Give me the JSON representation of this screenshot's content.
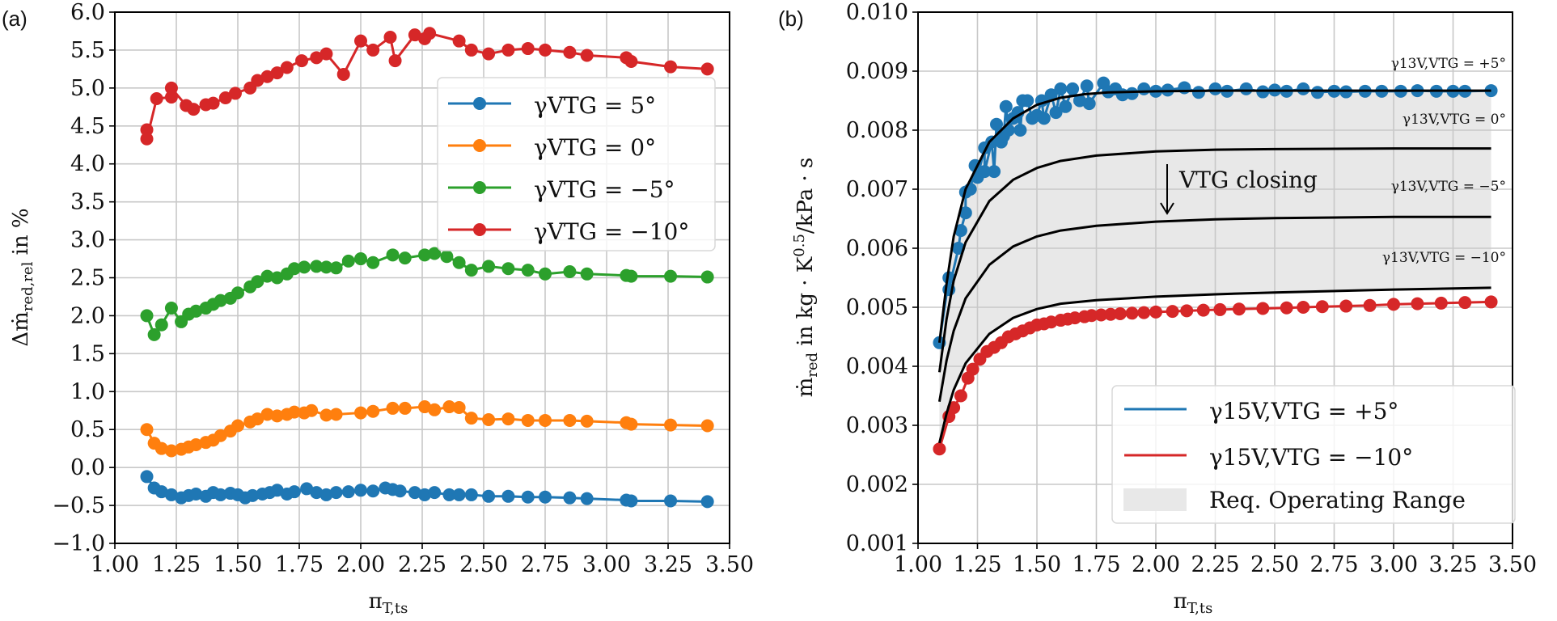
{
  "chart_data": [
    {
      "panel_label": "(a)",
      "type": "line",
      "xlabel": "π_T,ts",
      "ylabel": "Δṁ_red,rel in %",
      "xlim": [
        1.0,
        3.5
      ],
      "ylim": [
        -1.0,
        6.0
      ],
      "xticks": [
        "1.00",
        "1.25",
        "1.50",
        "1.75",
        "2.00",
        "2.25",
        "2.50",
        "2.75",
        "3.00",
        "3.25",
        "3.50"
      ],
      "yticks": [
        "−1.0",
        "−0.5",
        "0.0",
        "0.5",
        "1.0",
        "1.5",
        "2.0",
        "2.5",
        "3.0",
        "3.5",
        "4.0",
        "4.5",
        "5.0",
        "5.5",
        "6.0"
      ],
      "grid": true,
      "legend_position": "upper-right",
      "series": [
        {
          "name": "γVTG = 5°",
          "color": "#1f77b4",
          "x": [
            1.13,
            1.16,
            1.19,
            1.23,
            1.27,
            1.3,
            1.33,
            1.37,
            1.4,
            1.43,
            1.47,
            1.5,
            1.53,
            1.56,
            1.6,
            1.63,
            1.66,
            1.7,
            1.73,
            1.78,
            1.82,
            1.86,
            1.9,
            1.95,
            2.0,
            2.05,
            2.1,
            2.13,
            2.16,
            2.22,
            2.26,
            2.3,
            2.36,
            2.4,
            2.45,
            2.52,
            2.6,
            2.68,
            2.75,
            2.85,
            2.92,
            3.08,
            3.1,
            3.26,
            3.41
          ],
          "y": [
            -0.12,
            -0.27,
            -0.32,
            -0.36,
            -0.4,
            -0.37,
            -0.35,
            -0.38,
            -0.33,
            -0.36,
            -0.34,
            -0.36,
            -0.4,
            -0.37,
            -0.35,
            -0.33,
            -0.3,
            -0.35,
            -0.32,
            -0.28,
            -0.33,
            -0.36,
            -0.33,
            -0.32,
            -0.3,
            -0.31,
            -0.27,
            -0.29,
            -0.31,
            -0.33,
            -0.36,
            -0.33,
            -0.36,
            -0.36,
            -0.36,
            -0.38,
            -0.38,
            -0.39,
            -0.39,
            -0.4,
            -0.41,
            -0.43,
            -0.44,
            -0.44,
            -0.45
          ]
        },
        {
          "name": "γVTG = 0°",
          "color": "#ff7f0e",
          "x": [
            1.13,
            1.16,
            1.19,
            1.23,
            1.27,
            1.3,
            1.33,
            1.37,
            1.4,
            1.43,
            1.47,
            1.5,
            1.55,
            1.58,
            1.62,
            1.66,
            1.7,
            1.73,
            1.77,
            1.8,
            1.86,
            1.9,
            2.0,
            2.05,
            2.13,
            2.18,
            2.26,
            2.3,
            2.36,
            2.4,
            2.45,
            2.52,
            2.6,
            2.68,
            2.75,
            2.85,
            2.92,
            3.08,
            3.1,
            3.26,
            3.41
          ],
          "y": [
            0.5,
            0.32,
            0.25,
            0.22,
            0.24,
            0.27,
            0.3,
            0.33,
            0.36,
            0.42,
            0.48,
            0.55,
            0.6,
            0.64,
            0.7,
            0.68,
            0.7,
            0.73,
            0.72,
            0.75,
            0.69,
            0.7,
            0.72,
            0.74,
            0.78,
            0.78,
            0.8,
            0.76,
            0.8,
            0.79,
            0.65,
            0.63,
            0.64,
            0.62,
            0.62,
            0.62,
            0.61,
            0.59,
            0.57,
            0.56,
            0.55
          ]
        },
        {
          "name": "γVTG = −5°",
          "color": "#2ca02c",
          "x": [
            1.13,
            1.16,
            1.19,
            1.23,
            1.27,
            1.3,
            1.33,
            1.37,
            1.4,
            1.43,
            1.47,
            1.5,
            1.55,
            1.58,
            1.62,
            1.66,
            1.7,
            1.73,
            1.77,
            1.82,
            1.86,
            1.9,
            1.95,
            2.0,
            2.05,
            2.13,
            2.18,
            2.26,
            2.3,
            2.35,
            2.4,
            2.45,
            2.52,
            2.6,
            2.68,
            2.75,
            2.85,
            2.92,
            3.08,
            3.1,
            3.26,
            3.41
          ],
          "y": [
            2.0,
            1.75,
            1.88,
            2.1,
            1.92,
            2.02,
            2.06,
            2.1,
            2.15,
            2.2,
            2.23,
            2.3,
            2.38,
            2.45,
            2.52,
            2.5,
            2.55,
            2.62,
            2.64,
            2.65,
            2.64,
            2.63,
            2.72,
            2.75,
            2.7,
            2.8,
            2.76,
            2.8,
            2.82,
            2.78,
            2.7,
            2.6,
            2.65,
            2.62,
            2.6,
            2.55,
            2.58,
            2.55,
            2.53,
            2.52,
            2.52,
            2.51
          ]
        },
        {
          "name": "γVTG = −10°",
          "color": "#d62728",
          "x": [
            1.13,
            1.13,
            1.17,
            1.23,
            1.23,
            1.29,
            1.32,
            1.37,
            1.4,
            1.45,
            1.49,
            1.55,
            1.58,
            1.62,
            1.66,
            1.7,
            1.76,
            1.82,
            1.86,
            1.93,
            2.0,
            2.05,
            2.12,
            2.14,
            2.22,
            2.26,
            2.28,
            2.4,
            2.45,
            2.52,
            2.6,
            2.68,
            2.75,
            2.85,
            2.92,
            3.08,
            3.1,
            3.26,
            3.41
          ],
          "y": [
            4.45,
            4.33,
            4.86,
            4.88,
            5.0,
            4.77,
            4.72,
            4.78,
            4.8,
            4.87,
            4.93,
            5.0,
            5.1,
            5.15,
            5.2,
            5.27,
            5.36,
            5.4,
            5.45,
            5.18,
            5.62,
            5.5,
            5.67,
            5.36,
            5.7,
            5.65,
            5.72,
            5.62,
            5.5,
            5.45,
            5.5,
            5.52,
            5.5,
            5.47,
            5.43,
            5.4,
            5.35,
            5.28,
            5.25
          ]
        }
      ]
    },
    {
      "panel_label": "(b)",
      "type": "line",
      "xlabel": "π_T,ts",
      "ylabel": "ṁ_red in kg · K^0.5 /kPa · s",
      "xlim": [
        1.0,
        3.5
      ],
      "ylim": [
        0.001,
        0.01
      ],
      "xticks": [
        "1.00",
        "1.25",
        "1.50",
        "1.75",
        "2.00",
        "2.25",
        "2.50",
        "2.75",
        "3.00",
        "3.25",
        "3.50"
      ],
      "yticks": [
        "0.001",
        "0.002",
        "0.003",
        "0.004",
        "0.005",
        "0.006",
        "0.007",
        "0.008",
        "0.009",
        "0.010"
      ],
      "grid": true,
      "legend_position": "lower-right",
      "fill_band": {
        "name": "Req. Operating Range",
        "color": "#e8e8e8",
        "from_curve": "γ13V,VTG = −10°",
        "to_curve": "γ13V,VTG = +5°"
      },
      "model_curves": [
        {
          "name": "γ13V,VTG = +5°",
          "x": [
            1.09,
            1.12,
            1.15,
            1.2,
            1.3,
            1.4,
            1.5,
            1.6,
            1.7,
            1.8,
            2.0,
            2.25,
            2.5,
            3.0,
            3.41
          ],
          "y": [
            0.0044,
            0.0054,
            0.0062,
            0.007,
            0.0078,
            0.0082,
            0.00843,
            0.00855,
            0.00861,
            0.00864,
            0.00866,
            0.00867,
            0.00867,
            0.00867,
            0.00867
          ]
        },
        {
          "name": "γ13V,VTG = 0°",
          "x": [
            1.09,
            1.12,
            1.15,
            1.2,
            1.3,
            1.4,
            1.5,
            1.6,
            1.75,
            2.0,
            2.25,
            2.5,
            3.0,
            3.41
          ],
          "y": [
            0.0039,
            0.0048,
            0.00545,
            0.0061,
            0.0068,
            0.00716,
            0.00736,
            0.00748,
            0.00757,
            0.00764,
            0.00767,
            0.00768,
            0.00769,
            0.00769
          ]
        },
        {
          "name": "γ13V,VTG = −5°",
          "x": [
            1.09,
            1.12,
            1.15,
            1.2,
            1.3,
            1.4,
            1.5,
            1.6,
            1.75,
            2.0,
            2.25,
            2.5,
            3.0,
            3.41
          ],
          "y": [
            0.0034,
            0.0041,
            0.0046,
            0.00515,
            0.00572,
            0.00603,
            0.0062,
            0.0063,
            0.00638,
            0.00645,
            0.00649,
            0.00651,
            0.00653,
            0.00653
          ]
        },
        {
          "name": "γ13V,VTG = −10°",
          "x": [
            1.09,
            1.12,
            1.15,
            1.2,
            1.3,
            1.4,
            1.5,
            1.6,
            1.75,
            2.0,
            2.25,
            2.5,
            3.0,
            3.41
          ],
          "y": [
            0.0027,
            0.0032,
            0.0036,
            0.00405,
            0.00455,
            0.00482,
            0.00497,
            0.00506,
            0.00512,
            0.00518,
            0.00522,
            0.00525,
            0.0053,
            0.00533
          ]
        }
      ],
      "series": [
        {
          "name": "γ15V,VTG = +5°",
          "color": "#1f77b4",
          "x": [
            1.09,
            1.13,
            1.13,
            1.17,
            1.18,
            1.2,
            1.2,
            1.22,
            1.24,
            1.25,
            1.28,
            1.28,
            1.31,
            1.32,
            1.33,
            1.35,
            1.36,
            1.37,
            1.38,
            1.4,
            1.42,
            1.43,
            1.44,
            1.46,
            1.48,
            1.5,
            1.52,
            1.53,
            1.56,
            1.58,
            1.6,
            1.62,
            1.65,
            1.68,
            1.71,
            1.72,
            1.78,
            1.8,
            1.83,
            1.86,
            1.9,
            1.95,
            2.0,
            2.05,
            2.12,
            2.18,
            2.25,
            2.3,
            2.38,
            2.45,
            2.5,
            2.55,
            2.62,
            2.68,
            2.75,
            2.8,
            2.88,
            2.95,
            3.03,
            3.1,
            3.18,
            3.25,
            3.3,
            3.41
          ],
          "y": [
            0.0044,
            0.0055,
            0.0053,
            0.006,
            0.0063,
            0.0066,
            0.00695,
            0.007,
            0.0074,
            0.0072,
            0.0077,
            0.0073,
            0.0078,
            0.0073,
            0.0081,
            0.0078,
            0.0079,
            0.0084,
            0.008,
            0.0082,
            0.0083,
            0.008,
            0.0085,
            0.0085,
            0.0082,
            0.00825,
            0.0085,
            0.0082,
            0.0086,
            0.0083,
            0.0087,
            0.0084,
            0.0087,
            0.0085,
            0.00875,
            0.00845,
            0.0088,
            0.00865,
            0.0087,
            0.0086,
            0.00862,
            0.0087,
            0.00866,
            0.00868,
            0.00872,
            0.00864,
            0.0087,
            0.00866,
            0.0087,
            0.00865,
            0.00868,
            0.00866,
            0.0087,
            0.00864,
            0.00866,
            0.00865,
            0.00866,
            0.00866,
            0.00866,
            0.00867,
            0.00866,
            0.00866,
            0.00866,
            0.00867
          ]
        },
        {
          "name": "γ15V,VTG = −10°",
          "color": "#d62728",
          "x": [
            1.09,
            1.13,
            1.15,
            1.18,
            1.21,
            1.23,
            1.26,
            1.29,
            1.32,
            1.35,
            1.38,
            1.41,
            1.44,
            1.47,
            1.5,
            1.53,
            1.56,
            1.6,
            1.63,
            1.66,
            1.7,
            1.73,
            1.77,
            1.81,
            1.85,
            1.9,
            1.95,
            2.0,
            2.07,
            2.13,
            2.2,
            2.27,
            2.35,
            2.45,
            2.55,
            2.62,
            2.7,
            2.8,
            2.9,
            3.0,
            3.1,
            3.2,
            3.3,
            3.41
          ],
          "y": [
            0.0026,
            0.00315,
            0.0033,
            0.0035,
            0.0038,
            0.00395,
            0.00412,
            0.00425,
            0.00432,
            0.0044,
            0.0045,
            0.00455,
            0.0046,
            0.00465,
            0.0047,
            0.00472,
            0.00475,
            0.00478,
            0.0048,
            0.00482,
            0.00484,
            0.00486,
            0.00487,
            0.00488,
            0.00489,
            0.0049,
            0.00491,
            0.00492,
            0.00493,
            0.00494,
            0.00495,
            0.00496,
            0.00497,
            0.00498,
            0.00499,
            0.005,
            0.00501,
            0.00502,
            0.00503,
            0.00505,
            0.00506,
            0.00507,
            0.00508,
            0.00509
          ]
        }
      ],
      "annotations": {
        "curve_labels": [
          "γ13V,VTG = +5°",
          "γ13V,VTG = 0°",
          "γ13V,VTG = −5°",
          "γ13V,VTG = −10°"
        ],
        "arrow_text": "VTG closing"
      },
      "legend": [
        "γ15V,VTG = +5°",
        "γ15V,VTG = −10°",
        "Req. Operating Range"
      ]
    }
  ]
}
